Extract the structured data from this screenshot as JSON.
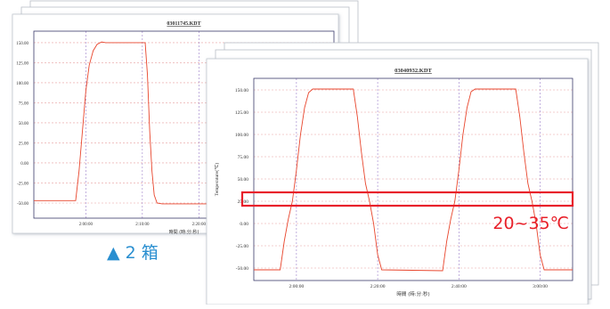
{
  "caption": "▲ 2 箱",
  "chart_data": [
    {
      "type": "line",
      "title": "03011745.KDT",
      "y_label": "Temperature(℃)",
      "x_label": "時間 (時:分:秒)",
      "xlim": [
        110.8,
        163.9
      ],
      "ylim": [
        -68.9,
        164.4
      ],
      "xticks": [
        {
          "value": 120,
          "label": "2:00:00"
        },
        {
          "value": 130,
          "label": "2:10:00"
        },
        {
          "value": 140,
          "label": "2:20:00"
        }
      ],
      "yticks": [
        {
          "value": 150,
          "label": "150.00"
        },
        {
          "value": 125,
          "label": "125.00"
        },
        {
          "value": 100,
          "label": "100.00"
        },
        {
          "value": 75,
          "label": "75.00"
        },
        {
          "value": 50,
          "label": "50.00"
        },
        {
          "value": 25,
          "label": "25.00"
        },
        {
          "value": 0,
          "label": "0.00"
        },
        {
          "value": -25,
          "label": "-25.00"
        },
        {
          "value": -50,
          "label": "-50.00"
        }
      ],
      "grid": true,
      "series": [
        {
          "color": "#e8452c",
          "x": [
            110.8,
            118.2,
            118.8,
            119.4,
            120,
            120.6,
            121.3,
            122,
            122.8,
            123.5,
            130.5,
            130.9,
            131.3,
            131.7,
            132.1,
            132.6,
            133.5,
            163.9
          ],
          "values": [
            -47,
            -47,
            -10,
            40,
            90,
            122,
            140,
            148,
            151,
            150,
            150,
            110,
            40,
            -10,
            -40,
            -50,
            -51,
            -51
          ]
        }
      ]
    },
    {
      "type": "line",
      "title": "03040932.KDT",
      "y_label": "Temperature(℃)",
      "x_label": "時間 (時:分:秒)",
      "xlim": [
        109.5,
        188
      ],
      "ylim": [
        -64,
        163
      ],
      "xticks": [
        {
          "value": 120,
          "label": "2:00:00"
        },
        {
          "value": 140,
          "label": "2:20:00"
        },
        {
          "value": 160,
          "label": "2:40:00"
        },
        {
          "value": 180,
          "label": "3:00:00"
        }
      ],
      "yticks": [
        {
          "value": 150,
          "label": "150.00"
        },
        {
          "value": 125,
          "label": "125.00"
        },
        {
          "value": 100,
          "label": "100.00"
        },
        {
          "value": 75,
          "label": "75.00"
        },
        {
          "value": 50,
          "label": "50.00"
        },
        {
          "value": 25,
          "label": "25.00"
        },
        {
          "value": 0,
          "label": "0.00"
        },
        {
          "value": -25,
          "label": "-25.00"
        },
        {
          "value": -50,
          "label": "-50.00"
        }
      ],
      "grid": true,
      "highlight_band": [
        20,
        35
      ],
      "annotation": "20~35℃",
      "series": [
        {
          "color": "#e8452c",
          "x": [
            109.5,
            116,
            117,
            118,
            119,
            120,
            121,
            122,
            123,
            124,
            134,
            135,
            136,
            137,
            138,
            139,
            140,
            141,
            156,
            157,
            158,
            159,
            160,
            161,
            162,
            163,
            164,
            174,
            175,
            176,
            177,
            178,
            179,
            180,
            181,
            188
          ],
          "values": [
            -52,
            -52,
            -20,
            5,
            25,
            60,
            100,
            130,
            147,
            151,
            151,
            120,
            80,
            45,
            25,
            0,
            -35,
            -52,
            -53,
            -20,
            5,
            25,
            60,
            100,
            130,
            148,
            151,
            151,
            120,
            80,
            45,
            25,
            0,
            -35,
            -52,
            -52
          ]
        }
      ]
    }
  ]
}
